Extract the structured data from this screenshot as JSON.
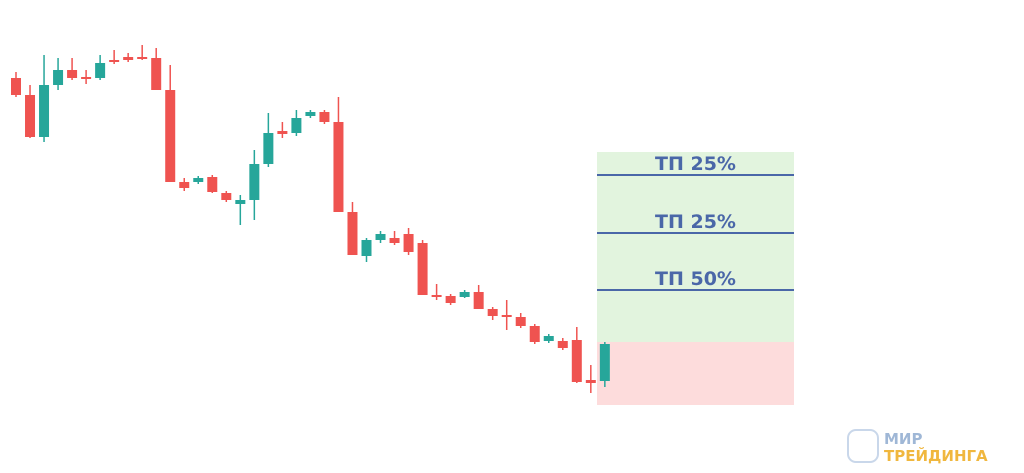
{
  "chart_data": {
    "type": "candlestick",
    "open": [
      422,
      405,
      363,
      415,
      430,
      423,
      422,
      440,
      443,
      443,
      442,
      410,
      318,
      318,
      323,
      307,
      296,
      300,
      336,
      369,
      367,
      384,
      388,
      378,
      288,
      244,
      260,
      262,
      266,
      257,
      205,
      204,
      203,
      208,
      191,
      185,
      183,
      174,
      159,
      159,
      160,
      120,
      119
    ],
    "high": [
      428,
      415,
      445,
      442,
      442,
      430,
      445,
      450,
      447,
      455,
      452,
      435,
      322,
      324,
      325,
      309,
      305,
      350,
      387,
      378,
      390,
      390,
      390,
      403,
      298,
      262,
      269,
      269,
      272,
      260,
      216,
      206,
      210,
      215,
      193,
      200,
      187,
      176,
      166,
      162,
      173,
      135,
      158
    ],
    "low": [
      403,
      362,
      358,
      410,
      420,
      416,
      420,
      436,
      438,
      440,
      410,
      318,
      309,
      316,
      307,
      298,
      275,
      280,
      333,
      362,
      364,
      382,
      376,
      288,
      245,
      238,
      257,
      255,
      245,
      205,
      200,
      195,
      202,
      191,
      180,
      170,
      172,
      156,
      157,
      150,
      117,
      107,
      113
    ],
    "close": [
      405,
      363,
      415,
      430,
      422,
      421,
      437,
      438,
      440,
      441,
      410,
      318,
      312,
      322,
      308,
      300,
      300,
      336,
      367,
      366,
      382,
      388,
      378,
      288,
      245,
      260,
      266,
      257,
      248,
      205,
      203,
      197,
      208,
      191,
      184,
      183,
      174,
      158,
      164,
      152,
      118,
      117,
      156
    ],
    "up_color": "#26a69a",
    "down_color": "#ef5350",
    "ylim": [
      60,
      460
    ],
    "position": {
      "target": 348,
      "entry": 158,
      "stop": 95,
      "profit_color": "#e2f4de",
      "loss_color": "#fddcdc",
      "line_color": "#4a67a8",
      "take_profits": [
        {
          "label": "ТП 25%",
          "value": 325
        },
        {
          "label": "ТП 25%",
          "value": 267
        },
        {
          "label": "ТП 50%",
          "value": 210
        }
      ]
    }
  },
  "logo": {
    "line1": "МИР",
    "line2": "ТРЕЙДИНГА"
  }
}
